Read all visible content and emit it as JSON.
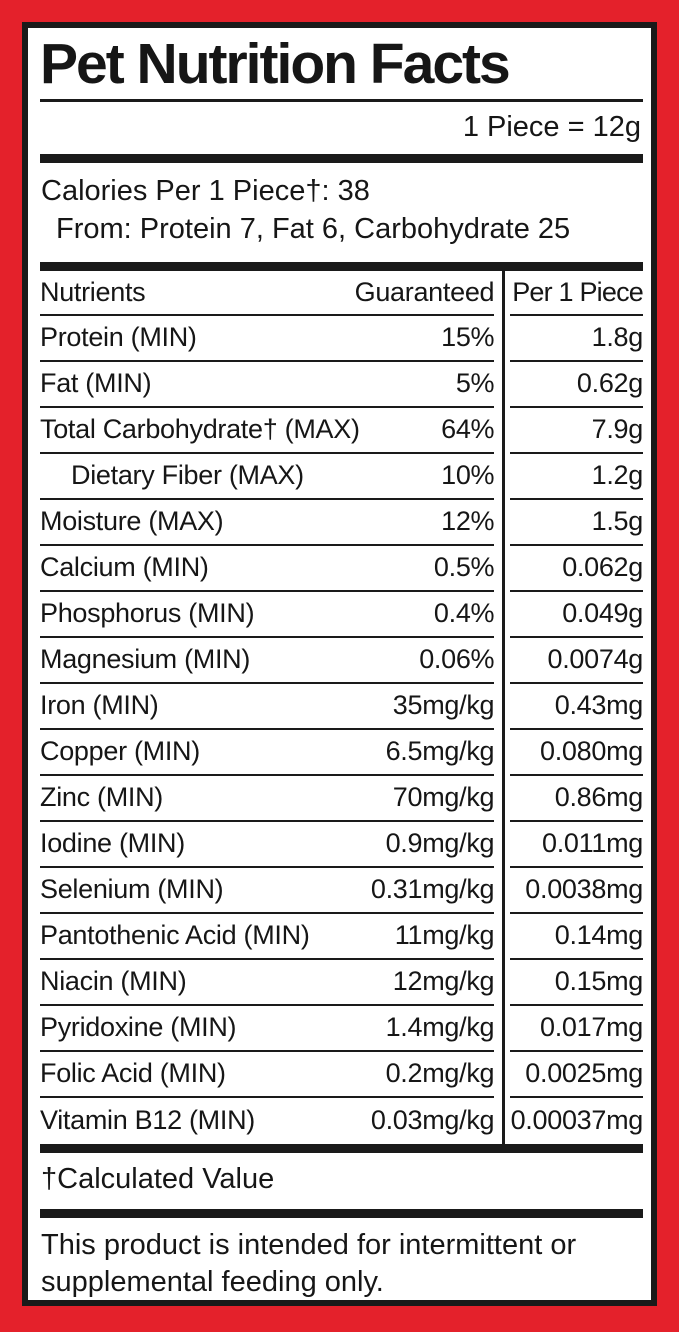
{
  "label": {
    "title": "Pet Nutrition Facts",
    "serving": "1 Piece = 12g",
    "calories_line": "Calories Per 1 Piece†: 38",
    "calories_from_line": "From: Protein 7, Fat 6, Carbohydrate 25",
    "footnote": "†Calculated Value",
    "feeding_statement": "This product is intended for intermittent or supplemental feeding only."
  },
  "colors": {
    "frame_red": "#e4212b",
    "ink_black": "#1a1a1a"
  },
  "table": {
    "headers": {
      "nutrients": "Nutrients",
      "guaranteed": "Guaranteed",
      "per_piece": "Per 1 Piece"
    },
    "rows": [
      {
        "name": "Protein (MIN)",
        "guaranteed": "15%",
        "per_piece": "1.8g",
        "indent": false
      },
      {
        "name": "Fat (MIN)",
        "guaranteed": "5%",
        "per_piece": "0.62g",
        "indent": false
      },
      {
        "name": "Total Carbohydrate† (MAX)",
        "guaranteed": "64%",
        "per_piece": "7.9g",
        "indent": false
      },
      {
        "name": "Dietary Fiber (MAX)",
        "guaranteed": "10%",
        "per_piece": "1.2g",
        "indent": true
      },
      {
        "name": "Moisture (MAX)",
        "guaranteed": "12%",
        "per_piece": "1.5g",
        "indent": false
      },
      {
        "name": "Calcium (MIN)",
        "guaranteed": "0.5%",
        "per_piece": "0.062g",
        "indent": false
      },
      {
        "name": "Phosphorus (MIN)",
        "guaranteed": "0.4%",
        "per_piece": "0.049g",
        "indent": false
      },
      {
        "name": "Magnesium (MIN)",
        "guaranteed": "0.06%",
        "per_piece": "0.0074g",
        "indent": false
      },
      {
        "name": "Iron (MIN)",
        "guaranteed": "35mg/kg",
        "per_piece": "0.43mg",
        "indent": false
      },
      {
        "name": "Copper (MIN)",
        "guaranteed": "6.5mg/kg",
        "per_piece": "0.080mg",
        "indent": false
      },
      {
        "name": "Zinc (MIN)",
        "guaranteed": "70mg/kg",
        "per_piece": "0.86mg",
        "indent": false
      },
      {
        "name": "Iodine (MIN)",
        "guaranteed": "0.9mg/kg",
        "per_piece": "0.011mg",
        "indent": false
      },
      {
        "name": "Selenium (MIN)",
        "guaranteed": "0.31mg/kg",
        "per_piece": "0.0038mg",
        "indent": false
      },
      {
        "name": "Pantothenic Acid (MIN)",
        "guaranteed": "11mg/kg",
        "per_piece": "0.14mg",
        "indent": false
      },
      {
        "name": "Niacin (MIN)",
        "guaranteed": "12mg/kg",
        "per_piece": "0.15mg",
        "indent": false
      },
      {
        "name": "Pyridoxine (MIN)",
        "guaranteed": "1.4mg/kg",
        "per_piece": "0.017mg",
        "indent": false
      },
      {
        "name": "Folic Acid (MIN)",
        "guaranteed": "0.2mg/kg",
        "per_piece": "0.0025mg",
        "indent": false
      },
      {
        "name": "Vitamin B12 (MIN)",
        "guaranteed": "0.03mg/kg",
        "per_piece": "0.00037mg",
        "indent": false
      }
    ]
  }
}
